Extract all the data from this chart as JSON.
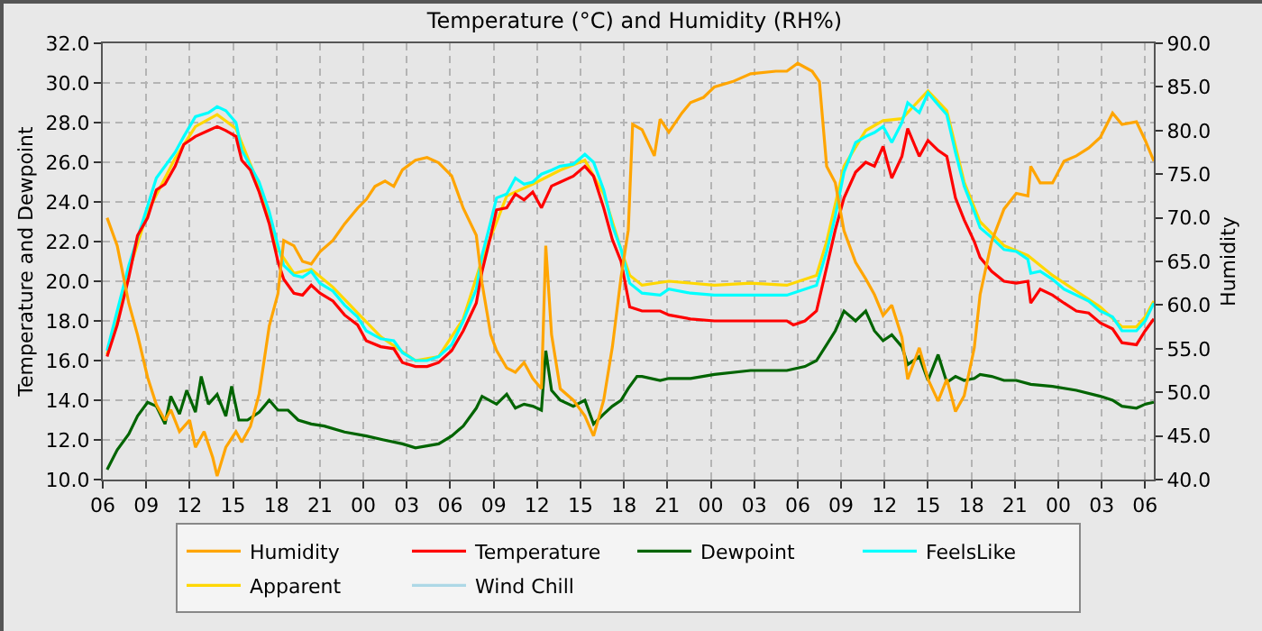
{
  "chart_data": {
    "type": "line",
    "title": "Temperature (°C) and Humidity (RH%)",
    "ylabel": "Temperature and Dewpoint",
    "y2label": "Humidity",
    "xlim": [
      6,
      78.6
    ],
    "xticks": [
      {
        "value": 6,
        "label": "06"
      },
      {
        "value": 9,
        "label": "09"
      },
      {
        "value": 12,
        "label": "12"
      },
      {
        "value": 15,
        "label": "15"
      },
      {
        "value": 18,
        "label": "18"
      },
      {
        "value": 21,
        "label": "21"
      },
      {
        "value": 24,
        "label": "00"
      },
      {
        "value": 27,
        "label": "03"
      },
      {
        "value": 30,
        "label": "06"
      },
      {
        "value": 33,
        "label": "09"
      },
      {
        "value": 36,
        "label": "12"
      },
      {
        "value": 39,
        "label": "15"
      },
      {
        "value": 42,
        "label": "18"
      },
      {
        "value": 45,
        "label": "21"
      },
      {
        "value": 48,
        "label": "00"
      },
      {
        "value": 51,
        "label": "03"
      },
      {
        "value": 54,
        "label": "06"
      },
      {
        "value": 57,
        "label": "09"
      },
      {
        "value": 60,
        "label": "12"
      },
      {
        "value": 63,
        "label": "15"
      },
      {
        "value": 66,
        "label": "18"
      },
      {
        "value": 69,
        "label": "21"
      },
      {
        "value": 72,
        "label": "00"
      },
      {
        "value": 75,
        "label": "03"
      },
      {
        "value": 78,
        "label": "06"
      }
    ],
    "ylim": [
      10,
      32
    ],
    "yticks": [
      {
        "value": 10,
        "label": "10.0"
      },
      {
        "value": 12,
        "label": "12.0"
      },
      {
        "value": 14,
        "label": "14.0"
      },
      {
        "value": 16,
        "label": "16.0"
      },
      {
        "value": 18,
        "label": "18.0"
      },
      {
        "value": 20,
        "label": "20.0"
      },
      {
        "value": 22,
        "label": "22.0"
      },
      {
        "value": 24,
        "label": "24.0"
      },
      {
        "value": 26,
        "label": "26.0"
      },
      {
        "value": 28,
        "label": "28.0"
      },
      {
        "value": 30,
        "label": "30.0"
      },
      {
        "value": 32,
        "label": "32.0"
      }
    ],
    "y2lim": [
      40,
      90
    ],
    "y2ticks": [
      {
        "value": 40,
        "label": "40.0"
      },
      {
        "value": 45,
        "label": "45.0"
      },
      {
        "value": 50,
        "label": "50.0"
      },
      {
        "value": 55,
        "label": "55.0"
      },
      {
        "value": 60,
        "label": "60.0"
      },
      {
        "value": 65,
        "label": "65.0"
      },
      {
        "value": 70,
        "label": "70.0"
      },
      {
        "value": 75,
        "label": "75.0"
      },
      {
        "value": 80,
        "label": "80.0"
      },
      {
        "value": 85,
        "label": "85.0"
      },
      {
        "value": 90,
        "label": "90.0"
      }
    ],
    "grid": true,
    "legend": "bottom",
    "line_style": "solid",
    "series": [
      {
        "name": "Humidity",
        "color": "#ffa500",
        "axis": "y2",
        "x": [
          6.3,
          7.0,
          7.8,
          8.4,
          9.1,
          9.7,
          10.3,
          10.7,
          11.3,
          12.0,
          12.4,
          13.0,
          13.6,
          13.9,
          14.5,
          15.2,
          15.6,
          16.2,
          16.8,
          17.5,
          18.1,
          18.5,
          19.2,
          19.8,
          20.4,
          21.0,
          21.9,
          22.7,
          23.6,
          24.2,
          24.8,
          25.5,
          26.1,
          26.7,
          27.6,
          28.4,
          29.2,
          30.1,
          30.9,
          31.8,
          32.2,
          32.8,
          33.2,
          33.9,
          34.5,
          35.1,
          35.7,
          36.3,
          36.6,
          37.0,
          37.6,
          38.5,
          39.3,
          39.9,
          40.6,
          41.2,
          41.8,
          42.3,
          42.6,
          43.25,
          44.1,
          44.5,
          45.1,
          46.0,
          46.6,
          47.5,
          48.25,
          49.5,
          50.75,
          52.5,
          53.25,
          54.0,
          55.0,
          55.5,
          56.0,
          56.6,
          57.2,
          58.0,
          58.7,
          59.3,
          59.9,
          60.5,
          61.2,
          61.6,
          62.4,
          63.0,
          63.7,
          64.3,
          64.9,
          65.5,
          66.2,
          66.6,
          67.4,
          68.25,
          69.1,
          69.9,
          70.1,
          70.75,
          71.6,
          72.4,
          73.25,
          74.1,
          74.9,
          75.75,
          76.4,
          77.4,
          78.0,
          78.6
        ],
        "values": [
          70.0,
          66.8,
          60.2,
          56.6,
          51.7,
          48.6,
          46.8,
          48.0,
          45.5,
          46.8,
          43.7,
          45.5,
          42.5,
          40.4,
          43.7,
          45.5,
          44.3,
          46.1,
          49.8,
          57.6,
          61.3,
          67.4,
          66.8,
          65.0,
          64.7,
          66.1,
          67.4,
          69.3,
          71.1,
          72.1,
          73.6,
          74.2,
          73.6,
          75.5,
          76.6,
          76.9,
          76.3,
          74.8,
          71.1,
          68.0,
          62.5,
          56.6,
          54.8,
          52.8,
          52.3,
          53.4,
          51.6,
          50.4,
          66.8,
          56.6,
          50.4,
          49.1,
          47.3,
          45.0,
          49.1,
          55.2,
          63.2,
          68.6,
          80.7,
          80.1,
          77.1,
          81.3,
          79.8,
          82.0,
          83.2,
          83.8,
          85.0,
          85.6,
          86.5,
          86.8,
          86.8,
          87.7,
          86.8,
          85.6,
          75.9,
          74.0,
          68.5,
          64.9,
          63.0,
          61.2,
          58.8,
          60.0,
          56.3,
          51.5,
          55.1,
          51.5,
          49.0,
          51.5,
          47.8,
          49.6,
          55.1,
          61.2,
          67.3,
          71.0,
          72.8,
          72.5,
          75.9,
          74.0,
          74.0,
          76.5,
          77.1,
          78.0,
          79.2,
          82.0,
          80.7,
          81.0,
          78.9,
          76.5
        ]
      },
      {
        "name": "Temperature",
        "color": "#ff0000",
        "x": [
          6.3,
          7.0,
          7.8,
          8.4,
          9.1,
          9.7,
          10.3,
          11.0,
          11.6,
          12.4,
          13.3,
          13.9,
          14.5,
          15.2,
          15.6,
          16.2,
          16.8,
          17.5,
          18.1,
          18.5,
          19.2,
          19.8,
          20.4,
          21.0,
          21.9,
          22.7,
          23.6,
          24.2,
          25.2,
          26.1,
          26.7,
          27.6,
          28.4,
          29.2,
          30.1,
          30.9,
          31.8,
          32.2,
          32.8,
          33.2,
          33.9,
          34.5,
          35.1,
          35.7,
          36.3,
          37.0,
          37.6,
          38.5,
          39.3,
          39.9,
          40.6,
          41.2,
          41.8,
          42.4,
          43.25,
          44.5,
          45.1,
          46.6,
          48.25,
          50.75,
          53.25,
          53.7,
          54.5,
          55.3,
          56.0,
          56.6,
          57.2,
          58.0,
          58.7,
          59.3,
          59.9,
          60.5,
          61.2,
          61.6,
          62.4,
          63.0,
          63.7,
          64.3,
          64.9,
          65.5,
          66.2,
          66.6,
          67.4,
          68.25,
          69.1,
          69.9,
          70.1,
          70.75,
          71.6,
          72.4,
          73.25,
          74.1,
          74.9,
          75.75,
          76.4,
          77.4,
          78.0,
          78.6
        ],
        "values": [
          16.2,
          17.8,
          20.2,
          22.3,
          23.2,
          24.6,
          24.9,
          25.8,
          26.9,
          27.3,
          27.6,
          27.8,
          27.6,
          27.3,
          26.1,
          25.6,
          24.5,
          22.9,
          21.0,
          20.1,
          19.4,
          19.3,
          19.8,
          19.4,
          19.0,
          18.3,
          17.8,
          17.0,
          16.7,
          16.6,
          15.9,
          15.7,
          15.7,
          15.9,
          16.5,
          17.5,
          18.9,
          20.5,
          22.3,
          23.6,
          23.7,
          24.4,
          24.1,
          24.5,
          23.7,
          24.8,
          25.0,
          25.3,
          25.8,
          25.3,
          23.7,
          22.1,
          21.0,
          18.7,
          18.5,
          18.5,
          18.3,
          18.1,
          18.0,
          18.0,
          18.0,
          17.8,
          18.0,
          18.5,
          20.7,
          22.6,
          24.2,
          25.5,
          26.0,
          25.8,
          26.8,
          25.2,
          26.3,
          27.7,
          26.3,
          27.1,
          26.6,
          26.3,
          24.2,
          23.1,
          22.0,
          21.2,
          20.5,
          20.0,
          19.9,
          20.0,
          18.9,
          19.6,
          19.3,
          18.9,
          18.5,
          18.4,
          17.9,
          17.6,
          16.9,
          16.8,
          17.5,
          18.1
        ]
      },
      {
        "name": "Dewpoint",
        "color": "#006400",
        "x": [
          6.3,
          7.0,
          7.8,
          8.4,
          9.1,
          9.7,
          10.3,
          10.7,
          11.3,
          11.8,
          12.4,
          12.8,
          13.3,
          13.9,
          14.5,
          14.9,
          15.4,
          16.0,
          16.8,
          17.5,
          18.1,
          18.8,
          19.5,
          20.4,
          21.3,
          22.7,
          24.2,
          25.4,
          26.7,
          27.6,
          28.4,
          29.2,
          30.1,
          30.9,
          31.8,
          32.2,
          33.2,
          33.9,
          34.5,
          35.1,
          35.7,
          36.3,
          36.6,
          37.0,
          37.6,
          38.5,
          39.3,
          39.9,
          40.6,
          41.2,
          41.8,
          42.3,
          42.9,
          43.25,
          44.5,
          45.1,
          46.6,
          48.25,
          50.75,
          53.25,
          54.5,
          55.3,
          56.0,
          56.6,
          57.2,
          58.0,
          58.7,
          59.3,
          59.9,
          60.5,
          61.2,
          61.6,
          62.4,
          63.0,
          63.7,
          64.3,
          64.9,
          65.5,
          66.2,
          66.6,
          67.4,
          68.25,
          69.1,
          70.1,
          71.6,
          73.25,
          74.9,
          75.75,
          76.4,
          77.4,
          78.0,
          78.6
        ],
        "values": [
          10.5,
          11.5,
          12.3,
          13.2,
          13.9,
          13.7,
          12.8,
          14.2,
          13.3,
          14.5,
          13.4,
          15.2,
          13.8,
          14.3,
          13.2,
          14.7,
          13.0,
          13.0,
          13.4,
          14.0,
          13.5,
          13.5,
          13.0,
          12.8,
          12.7,
          12.4,
          12.2,
          12.0,
          11.8,
          11.6,
          11.7,
          11.8,
          12.2,
          12.7,
          13.6,
          14.2,
          13.8,
          14.3,
          13.6,
          13.8,
          13.7,
          13.5,
          16.5,
          14.5,
          14.0,
          13.7,
          14.0,
          12.8,
          13.3,
          13.7,
          14.0,
          14.6,
          15.2,
          15.2,
          15.0,
          15.1,
          15.1,
          15.3,
          15.5,
          15.5,
          15.7,
          16.0,
          16.8,
          17.5,
          18.5,
          18.0,
          18.5,
          17.5,
          17.0,
          17.3,
          16.7,
          15.8,
          16.2,
          15.0,
          16.3,
          14.9,
          15.2,
          15.0,
          15.1,
          15.3,
          15.2,
          15.0,
          15.0,
          14.8,
          14.7,
          14.5,
          14.2,
          14.0,
          13.7,
          13.6,
          13.8,
          13.9
        ]
      },
      {
        "name": "FeelsLike",
        "color": "#00ffff",
        "x": [
          6.3,
          7.8,
          9.1,
          9.7,
          11.0,
          11.6,
          12.4,
          13.3,
          13.9,
          14.5,
          15.2,
          15.6,
          16.8,
          17.5,
          18.1,
          18.5,
          19.2,
          19.8,
          20.4,
          21.0,
          21.9,
          22.7,
          23.6,
          24.2,
          25.2,
          26.1,
          26.7,
          27.6,
          28.4,
          29.2,
          30.1,
          30.9,
          31.8,
          32.2,
          32.8,
          33.2,
          33.9,
          34.5,
          35.1,
          35.7,
          36.3,
          37.0,
          37.6,
          38.5,
          39.3,
          39.9,
          40.6,
          41.2,
          41.8,
          42.4,
          43.25,
          44.5,
          45.1,
          46.6,
          48.25,
          50.75,
          53.25,
          55.3,
          56.0,
          56.6,
          57.2,
          58.0,
          58.7,
          59.3,
          59.9,
          60.5,
          61.2,
          61.6,
          62.4,
          63.0,
          63.7,
          64.3,
          64.9,
          65.5,
          66.2,
          66.6,
          67.4,
          68.25,
          69.1,
          69.9,
          70.1,
          70.75,
          71.6,
          72.4,
          73.25,
          74.1,
          74.9,
          75.75,
          76.4,
          77.4,
          78.0,
          78.6
        ],
        "values": [
          16.5,
          20.8,
          23.8,
          25.2,
          26.5,
          27.3,
          28.3,
          28.5,
          28.8,
          28.6,
          28.0,
          26.6,
          25.0,
          23.5,
          21.8,
          20.8,
          20.3,
          20.2,
          20.5,
          19.9,
          19.5,
          18.8,
          18.2,
          17.5,
          17.1,
          17.0,
          16.4,
          16.0,
          16.0,
          16.2,
          16.8,
          18.0,
          19.6,
          21.3,
          23.0,
          24.2,
          24.4,
          25.2,
          24.9,
          25.0,
          25.4,
          25.6,
          25.8,
          25.9,
          26.4,
          26.0,
          24.6,
          22.8,
          21.6,
          19.9,
          19.4,
          19.3,
          19.6,
          19.4,
          19.3,
          19.3,
          19.3,
          19.8,
          21.5,
          23.3,
          25.5,
          27.0,
          27.3,
          27.5,
          27.8,
          27.0,
          28.0,
          29.0,
          28.5,
          29.5,
          28.9,
          28.4,
          26.5,
          24.8,
          23.5,
          22.7,
          22.2,
          21.6,
          21.5,
          21.1,
          20.4,
          20.5,
          20.1,
          19.6,
          19.3,
          19.0,
          18.5,
          18.2,
          17.5,
          17.5,
          18.0,
          18.9
        ]
      },
      {
        "name": "Apparent",
        "color": "#ffd700",
        "x": [
          6.3,
          7.8,
          9.1,
          11.0,
          12.4,
          13.9,
          15.2,
          16.8,
          18.1,
          19.2,
          20.4,
          21.9,
          23.6,
          25.2,
          27.6,
          29.2,
          30.9,
          32.2,
          33.9,
          35.7,
          37.6,
          39.3,
          40.6,
          41.8,
          42.4,
          43.25,
          45.1,
          48.25,
          50.75,
          53.25,
          55.3,
          56.0,
          57.2,
          58.7,
          59.9,
          61.2,
          63.0,
          64.3,
          65.5,
          66.6,
          68.25,
          69.9,
          71.6,
          73.25,
          74.9,
          76.4,
          77.4,
          78.0,
          78.6
        ],
        "values": [
          16.3,
          20.5,
          23.5,
          26.2,
          27.8,
          28.4,
          27.7,
          24.8,
          21.6,
          20.4,
          20.6,
          19.7,
          18.4,
          17.2,
          16.0,
          16.2,
          18.1,
          21.1,
          24.3,
          24.9,
          25.6,
          26.1,
          24.4,
          21.6,
          20.3,
          19.8,
          20.0,
          19.8,
          19.9,
          19.8,
          20.3,
          22.0,
          25.8,
          27.6,
          28.1,
          28.2,
          29.6,
          28.6,
          25.0,
          23.0,
          21.8,
          21.3,
          20.3,
          19.5,
          18.7,
          17.7,
          17.7,
          18.2,
          19.0
        ]
      },
      {
        "name": "Wind Chill",
        "color": "#add8e6"
      }
    ]
  }
}
